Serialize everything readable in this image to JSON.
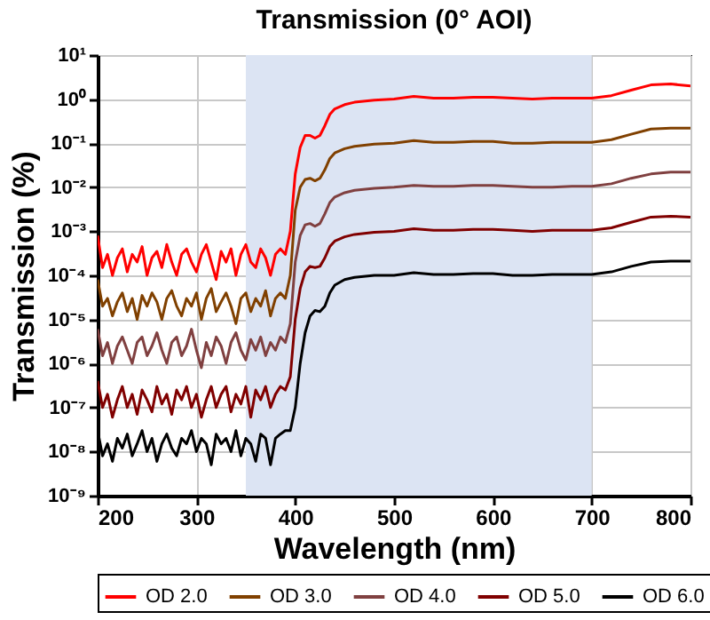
{
  "chart_data": {
    "type": "line",
    "title": "Transmission (0° AOI)",
    "xlabel": "Wavelength (nm)",
    "ylabel": "Transmission (%)",
    "x": [
      200,
      205,
      210,
      215,
      220,
      225,
      230,
      235,
      240,
      245,
      250,
      255,
      260,
      265,
      270,
      275,
      280,
      285,
      290,
      295,
      300,
      305,
      310,
      315,
      320,
      325,
      330,
      335,
      340,
      345,
      350,
      355,
      360,
      365,
      370,
      375,
      380,
      385,
      390,
      395,
      400,
      405,
      410,
      415,
      420,
      425,
      430,
      435,
      440,
      450,
      460,
      480,
      500,
      520,
      540,
      560,
      580,
      600,
      620,
      640,
      660,
      680,
      700,
      720,
      740,
      760,
      780,
      800
    ],
    "series": [
      {
        "name": "OD 2.0",
        "color": "#ff0000",
        "values": [
          0.0008,
          0.00015,
          0.0003,
          0.0001,
          0.00025,
          0.0004,
          0.00012,
          0.0003,
          0.0002,
          0.00045,
          0.0001,
          0.00025,
          0.00035,
          0.00015,
          0.0005,
          0.0002,
          0.0001,
          0.0003,
          0.0004,
          0.0002,
          0.00012,
          0.0003,
          0.0005,
          0.0002,
          8e-05,
          0.00035,
          0.0002,
          0.0004,
          0.0001,
          0.0003,
          0.0005,
          0.0002,
          0.00015,
          0.0004,
          0.00025,
          0.0001,
          0.0003,
          0.0004,
          0.0003,
          0.001,
          0.02,
          0.08,
          0.15,
          0.15,
          0.13,
          0.15,
          0.25,
          0.45,
          0.6,
          0.75,
          0.85,
          0.95,
          1.0,
          1.15,
          1.05,
          1.05,
          1.1,
          1.1,
          1.05,
          1.0,
          1.05,
          1.05,
          1.05,
          1.2,
          1.6,
          2.1,
          2.2,
          2.0
        ]
      },
      {
        "name": "OD 3.0",
        "color": "#804000",
        "values": [
          8e-05,
          2e-05,
          3e-05,
          1.2e-05,
          2.5e-05,
          4e-05,
          1.5e-05,
          3e-05,
          1e-05,
          3.5e-05,
          2e-05,
          4e-05,
          2.5e-05,
          1e-05,
          3e-05,
          4.5e-05,
          2e-05,
          1.2e-05,
          3e-05,
          2e-05,
          4e-05,
          1e-05,
          3e-05,
          5e-05,
          1.5e-05,
          2.5e-05,
          4e-05,
          2e-05,
          8e-06,
          3e-05,
          4e-05,
          1.5e-05,
          3e-05,
          2e-05,
          4.5e-05,
          1.2e-05,
          3e-05,
          4e-05,
          3e-05,
          0.0001,
          0.003,
          0.01,
          0.015,
          0.016,
          0.014,
          0.016,
          0.025,
          0.045,
          0.06,
          0.075,
          0.085,
          0.095,
          0.1,
          0.115,
          0.105,
          0.105,
          0.11,
          0.11,
          0.1,
          0.1,
          0.105,
          0.105,
          0.105,
          0.12,
          0.16,
          0.21,
          0.22,
          0.22
        ]
      },
      {
        "name": "OD 4.0",
        "color": "#804040",
        "values": [
          6e-06,
          1.5e-06,
          3e-06,
          1e-06,
          2.5e-06,
          4e-06,
          2e-06,
          1e-06,
          3e-06,
          4e-06,
          1.5e-06,
          2.5e-06,
          5e-06,
          2e-06,
          1e-06,
          3e-06,
          4e-06,
          1.5e-06,
          2.5e-06,
          6e-06,
          2e-06,
          8e-07,
          3e-06,
          1.5e-06,
          4e-06,
          2.5e-06,
          1e-06,
          3e-06,
          5e-06,
          2e-06,
          1.2e-06,
          3.5e-06,
          2e-06,
          4e-06,
          1.5e-06,
          3e-06,
          2e-06,
          4e-06,
          3e-06,
          8e-06,
          0.0002,
          0.0008,
          0.0014,
          0.0015,
          0.0013,
          0.0015,
          0.0025,
          0.0045,
          0.006,
          0.0075,
          0.0085,
          0.0095,
          0.01,
          0.011,
          0.0105,
          0.0105,
          0.011,
          0.011,
          0.0105,
          0.01,
          0.01,
          0.0105,
          0.0105,
          0.012,
          0.016,
          0.02,
          0.022,
          0.022
        ]
      },
      {
        "name": "OD 5.0",
        "color": "#800000",
        "values": [
          4e-07,
          1e-07,
          2e-07,
          6e-08,
          1.5e-07,
          3e-07,
          1e-07,
          2e-07,
          7e-08,
          2.5e-07,
          1.5e-07,
          8e-08,
          3e-07,
          1.2e-07,
          2e-07,
          7e-08,
          2.5e-07,
          1.5e-07,
          3e-07,
          1e-07,
          2e-07,
          6e-08,
          1.5e-07,
          3e-07,
          1e-07,
          2e-07,
          3e-07,
          8e-08,
          2e-07,
          1.2e-07,
          3e-07,
          6e-08,
          2.5e-07,
          1.5e-07,
          3e-07,
          1e-07,
          2e-07,
          3e-07,
          2.5e-07,
          5e-07,
          1e-05,
          5e-05,
          0.00012,
          0.00016,
          0.00015,
          0.00016,
          0.00025,
          0.00045,
          0.0006,
          0.00075,
          0.00085,
          0.00095,
          0.001,
          0.00115,
          0.00105,
          0.00105,
          0.0011,
          0.0011,
          0.00105,
          0.001,
          0.00105,
          0.00105,
          0.00105,
          0.0012,
          0.0016,
          0.0021,
          0.0022,
          0.0021
        ]
      },
      {
        "name": "OD 6.0",
        "color": "#000000",
        "values": [
          3e-08,
          8e-09,
          1.5e-08,
          6e-09,
          2e-08,
          1.2e-08,
          2.5e-08,
          8e-09,
          1.5e-08,
          3e-08,
          1e-08,
          2e-08,
          6e-09,
          1.5e-08,
          2.5e-08,
          1.2e-08,
          8e-09,
          2e-08,
          1.5e-08,
          3e-08,
          1e-08,
          2e-08,
          1.5e-08,
          5e-09,
          2.5e-08,
          1.5e-08,
          2e-08,
          1e-08,
          3e-08,
          8e-09,
          2e-08,
          1.5e-08,
          6e-09,
          2.5e-08,
          2e-08,
          5e-09,
          2e-08,
          2.5e-08,
          3e-08,
          3e-08,
          1e-07,
          1e-06,
          5e-06,
          1.2e-05,
          1.6e-05,
          1.5e-05,
          2e-05,
          4e-05,
          6e-05,
          8e-05,
          9e-05,
          0.0001,
          0.0001,
          0.000115,
          0.000105,
          0.000105,
          0.00011,
          0.00011,
          0.0001,
          0.0001,
          0.000105,
          0.000105,
          0.000105,
          0.00012,
          0.00016,
          0.0002,
          0.00021,
          0.00021
        ]
      }
    ],
    "xlim": [
      200,
      800
    ],
    "xticks": [
      200,
      300,
      400,
      500,
      600,
      700,
      800
    ],
    "ylim": [
      1e-09,
      10
    ],
    "log": true,
    "yticks": [
      {
        "value": 1e-09,
        "label": "10⁻⁹"
      },
      {
        "value": 1e-08,
        "label": "10⁻⁸"
      },
      {
        "value": 1e-07,
        "label": "10⁻⁷"
      },
      {
        "value": 1e-06,
        "label": "10⁻⁶"
      },
      {
        "value": 1e-05,
        "label": "10⁻⁵"
      },
      {
        "value": 0.0001,
        "label": "10⁻⁴"
      },
      {
        "value": 0.001,
        "label": "10⁻³"
      },
      {
        "value": 0.01,
        "label": "10⁻²"
      },
      {
        "value": 0.1,
        "label": "10⁻¹"
      },
      {
        "value": 1,
        "label": "10⁰"
      },
      {
        "value": 10,
        "label": "10¹"
      }
    ],
    "bands": [
      {
        "axis": "x",
        "from": 350,
        "to": 700,
        "color": "#dce4f3"
      }
    ],
    "grid": true,
    "legend": "bottom",
    "line_style": "solid"
  }
}
